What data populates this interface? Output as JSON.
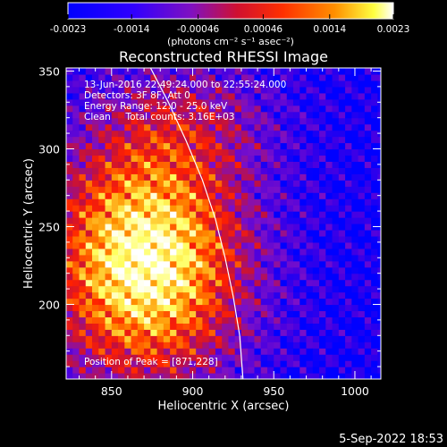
{
  "chart_data": {
    "type": "heatmap",
    "title": "Reconstructed RHESSI Image",
    "xlabel": "Heliocentric X (arcsec)",
    "ylabel": "Heliocentric Y (arcsec)",
    "xlim": [
      822,
      1016
    ],
    "ylim": [
      152,
      352
    ],
    "x_ticks": [
      850,
      900,
      950,
      1000
    ],
    "y_ticks": [
      200,
      250,
      300,
      350
    ],
    "x_tick_labels": [
      "850",
      "900",
      "950",
      "1000"
    ],
    "y_tick_labels": [
      "200",
      "250",
      "300",
      "350"
    ],
    "colorbar": {
      "min": -0.0023,
      "max": 0.0023,
      "tick_labels": [
        "-0.0023",
        "-0.0014",
        "-0.00046",
        "0.00046",
        "0.0014",
        "0.0023"
      ],
      "tick_values": [
        -0.0023,
        -0.0014,
        -0.00046,
        0.00046,
        0.0014,
        0.0023
      ],
      "unit_label": "(photons cm⁻² s⁻¹ asec⁻²)"
    },
    "info_lines": [
      "13-Jun-2016 22:49:24.000 to 22:55:24.000",
      "Detectors: 3F 8F, Att 0",
      "Energy Range: 12.0 - 25.0 keV",
      "Clean     Total counts: 3.16E+03"
    ],
    "peak_label": "Position of Peak = [871,228]",
    "peak": [
      871,
      228
    ],
    "limb_curve": [
      [
        874,
        352
      ],
      [
        885,
        330
      ],
      [
        896,
        305
      ],
      [
        906,
        280
      ],
      [
        914,
        255
      ],
      [
        920,
        230
      ],
      [
        925,
        205
      ],
      [
        929,
        180
      ],
      [
        931,
        152
      ]
    ],
    "pixel_size_arcsec": 4,
    "colormap": [
      "#0000ff",
      "#4a00e0",
      "#7a10c8",
      "#c01040",
      "#ff2000",
      "#ff9000",
      "#ffff60",
      "#ffffff"
    ]
  },
  "footer": {
    "timestamp": "5-Sep-2022 18:53"
  }
}
